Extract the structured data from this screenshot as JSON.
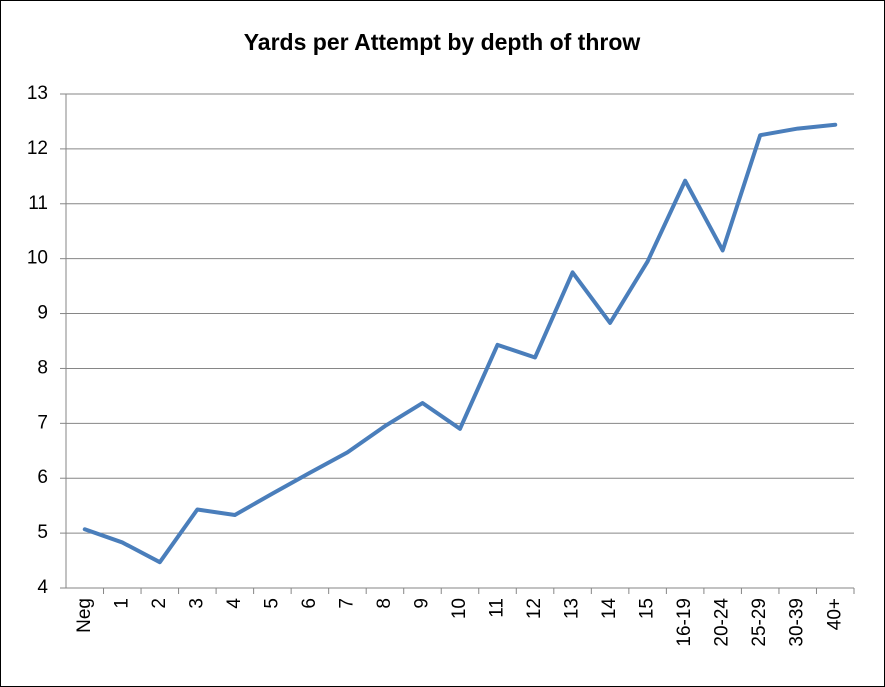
{
  "chart_data": {
    "type": "line",
    "title": "Yards per Attempt by depth of throw",
    "categories": [
      "Neg",
      "1",
      "2",
      "3",
      "4",
      "5",
      "6",
      "7",
      "8",
      "9",
      "10",
      "11",
      "12",
      "13",
      "14",
      "15",
      "16-19",
      "20-24",
      "25-29",
      "30-39",
      "40+"
    ],
    "series": [
      {
        "name": "Yards per Attempt",
        "color": "#4a7ebb",
        "values": [
          5.07,
          4.83,
          4.47,
          5.43,
          5.33,
          5.72,
          6.1,
          6.47,
          6.95,
          7.37,
          6.9,
          8.43,
          8.2,
          9.75,
          8.83,
          9.95,
          11.42,
          10.15,
          12.25,
          12.37,
          12.44
        ]
      }
    ],
    "ylim": [
      4,
      13
    ],
    "yticks": [
      4,
      5,
      6,
      7,
      8,
      9,
      10,
      11,
      12,
      13
    ],
    "grid": true
  }
}
